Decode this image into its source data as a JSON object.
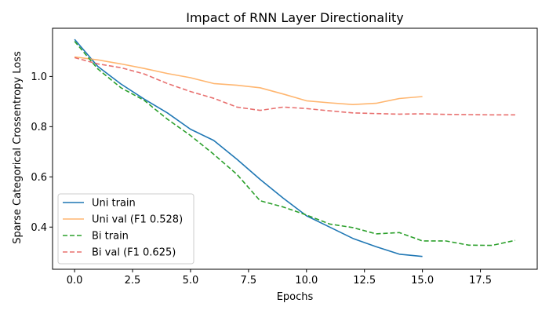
{
  "chart_data": {
    "type": "line",
    "title": "Impact of RNN Layer Directionality",
    "xlabel": "Epochs",
    "ylabel": "Sparse Categorical Crossentropy Loss",
    "xlim": [
      -0.95,
      19.95
    ],
    "ylim": [
      0.232,
      1.192
    ],
    "xticks": [
      0.0,
      2.5,
      5.0,
      7.5,
      10.0,
      12.5,
      15.0,
      17.5
    ],
    "xtick_labels": [
      "0.0",
      "2.5",
      "5.0",
      "7.5",
      "10.0",
      "12.5",
      "15.0",
      "17.5"
    ],
    "yticks": [
      0.4,
      0.6,
      0.8,
      1.0
    ],
    "ytick_labels": [
      "0.4",
      "0.6",
      "0.8",
      "1.0"
    ],
    "grid": false,
    "legend_position": "lower-left",
    "series": [
      {
        "name": "Uni train",
        "color": "#1f77b4",
        "dashed": false,
        "opacity": 1.0,
        "x": [
          0,
          1,
          2,
          3,
          4,
          5,
          6,
          7,
          8,
          9,
          10,
          11,
          12,
          13,
          14,
          15
        ],
        "y": [
          1.148,
          1.04,
          0.97,
          0.91,
          0.855,
          0.79,
          0.745,
          0.67,
          0.59,
          0.515,
          0.445,
          0.4,
          0.355,
          0.322,
          0.292,
          0.283
        ]
      },
      {
        "name": "Uni val (F1 0.528)",
        "color": "#ffa957",
        "dashed": false,
        "opacity": 0.85,
        "x": [
          0,
          1,
          2,
          3,
          4,
          5,
          6,
          7,
          8,
          9,
          10,
          11,
          12,
          13,
          14,
          15
        ],
        "y": [
          1.078,
          1.066,
          1.05,
          1.032,
          1.012,
          0.995,
          0.972,
          0.965,
          0.955,
          0.93,
          0.903,
          0.895,
          0.888,
          0.893,
          0.912,
          0.92
        ]
      },
      {
        "name": "Bi train",
        "color": "#2ca02c",
        "dashed": true,
        "opacity": 1.0,
        "x": [
          0,
          1,
          2,
          3,
          4,
          5,
          6,
          7,
          8,
          9,
          10,
          11,
          12,
          13,
          14,
          15,
          16,
          17,
          18,
          19
        ],
        "y": [
          1.14,
          1.03,
          0.955,
          0.905,
          0.83,
          0.765,
          0.69,
          0.61,
          0.505,
          0.48,
          0.448,
          0.412,
          0.398,
          0.373,
          0.378,
          0.345,
          0.345,
          0.328,
          0.327,
          0.347
        ]
      },
      {
        "name": "Bi val (F1 0.625)",
        "color": "#e45756",
        "dashed": true,
        "opacity": 0.85,
        "x": [
          0,
          1,
          2,
          3,
          4,
          5,
          6,
          7,
          8,
          9,
          10,
          11,
          12,
          13,
          14,
          15,
          16,
          17,
          18,
          19
        ],
        "y": [
          1.075,
          1.05,
          1.035,
          1.01,
          0.972,
          0.94,
          0.913,
          0.878,
          0.865,
          0.878,
          0.872,
          0.863,
          0.855,
          0.852,
          0.85,
          0.851,
          0.849,
          0.848,
          0.847,
          0.847
        ]
      }
    ]
  }
}
